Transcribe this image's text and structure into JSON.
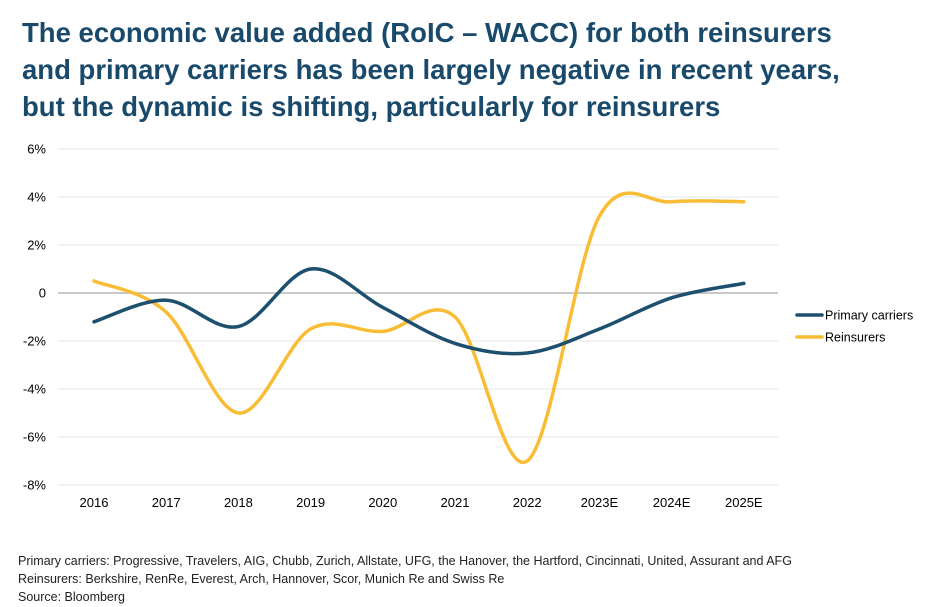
{
  "title_lines": [
    "The economic value added (RoIC – WACC) for both reinsurers",
    "and primary carriers has been largely negative in recent years,",
    "but the dynamic is shifting, particularly for reinsurers"
  ],
  "notes": [
    "Primary carriers: Progressive, Travelers, AIG, Chubb, Zurich, Allstate, UFG, the Hanover, the Hartford, Cincinnati, United, Assurant and AFG",
    "Reinsurers: Berkshire, RenRe, Everest, Arch, Hannover, Scor, Munich Re and Swiss Re",
    "Source: Bloomberg"
  ],
  "colors": {
    "title": "#1a4a6b",
    "primary": "#1d4f6e",
    "reinsurers": "#f9bd35",
    "grid": "#e6e6e6",
    "zero_line": "#c8c8c8"
  },
  "chart_data": {
    "type": "line",
    "title": "",
    "xlabel": "",
    "ylabel": "",
    "categories": [
      "2016",
      "2017",
      "2018",
      "2019",
      "2020",
      "2021",
      "2022",
      "2023E",
      "2024E",
      "2025E"
    ],
    "ylim": [
      -8,
      6
    ],
    "yticks": [
      -8,
      -6,
      -4,
      -2,
      0,
      2,
      4,
      6
    ],
    "ytick_labels": [
      "-8%",
      "-6%",
      "-4%",
      "-2%",
      "0",
      "2%",
      "4%",
      "6%"
    ],
    "grid": true,
    "legend_position": "right",
    "series": [
      {
        "name": "Primary carriers",
        "color": "#1d4f6e",
        "values": [
          -1.2,
          -0.3,
          -1.4,
          1.0,
          -0.6,
          -2.1,
          -2.5,
          -1.5,
          -0.2,
          0.4
        ]
      },
      {
        "name": "Reinsurers",
        "color": "#f9bd35",
        "values": [
          0.5,
          -0.8,
          -5.0,
          -1.5,
          -1.6,
          -1.0,
          -7.0,
          3.2,
          3.8,
          3.8
        ]
      }
    ]
  }
}
